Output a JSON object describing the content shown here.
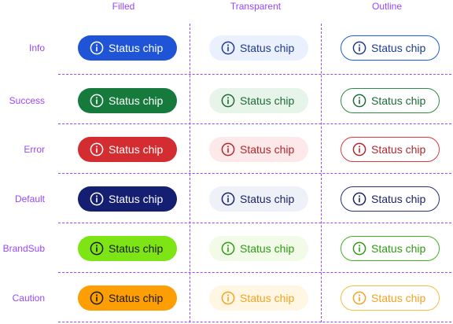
{
  "columns": [
    "Filled",
    "Transparent",
    "Outline"
  ],
  "chip_label": "Status chip",
  "icon": "info-circle-icon",
  "rows": [
    {
      "label": "Info",
      "filled": {
        "bg": "#1f54d6",
        "fg": "#ffffff"
      },
      "transparent": {
        "bg": "#eaf0fd",
        "fg": "#1f3b8f"
      },
      "outline": {
        "border": "#1e5fd6",
        "fg": "#1f3b8f"
      }
    },
    {
      "label": "Success",
      "filled": {
        "bg": "#167a3c",
        "fg": "#ffffff"
      },
      "transparent": {
        "bg": "#e6f4ea",
        "fg": "#1e6b37"
      },
      "outline": {
        "border": "#2d8a46",
        "fg": "#1e6b37"
      }
    },
    {
      "label": "Error",
      "filled": {
        "bg": "#d32d31",
        "fg": "#ffffff"
      },
      "transparent": {
        "bg": "#fde8ea",
        "fg": "#b3262a"
      },
      "outline": {
        "border": "#d6383c",
        "fg": "#b3262a"
      }
    },
    {
      "label": "Default",
      "filled": {
        "bg": "#151f72",
        "fg": "#ffffff"
      },
      "transparent": {
        "bg": "#eef1f8",
        "fg": "#1b2566"
      },
      "outline": {
        "border": "#27307a",
        "fg": "#1b2566"
      }
    },
    {
      "label": "BrandSub",
      "filled": {
        "bg": "#7de515",
        "fg": "#1a1a1a"
      },
      "transparent": {
        "bg": "#f1fbe8",
        "fg": "#2f9a14"
      },
      "outline": {
        "border": "#3fb21d",
        "fg": "#2f9a14"
      }
    },
    {
      "label": "Caution",
      "filled": {
        "bg": "#fd9e05",
        "fg": "#1a1a1a"
      },
      "transparent": {
        "bg": "#fff6e3",
        "fg": "#f2a320"
      },
      "outline": {
        "border": "#f7bd45",
        "fg": "#f2a320"
      }
    }
  ]
}
